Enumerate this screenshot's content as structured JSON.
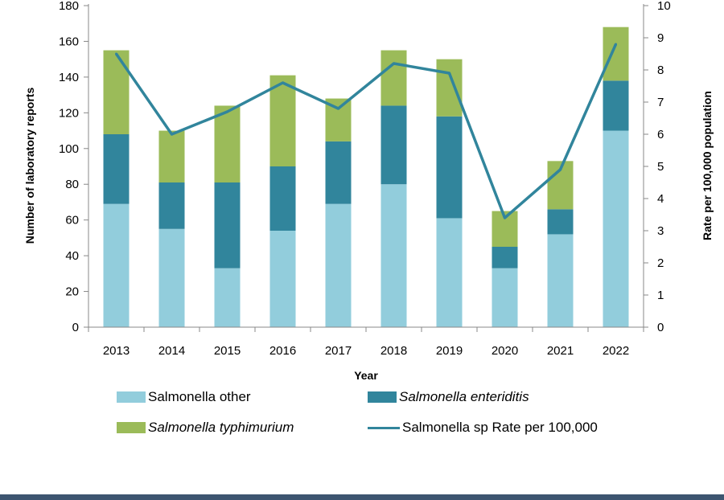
{
  "chart_data": {
    "type": "bar",
    "stacked": true,
    "categories": [
      "2013",
      "2014",
      "2015",
      "2016",
      "2017",
      "2018",
      "2019",
      "2020",
      "2021",
      "2022"
    ],
    "series": [
      {
        "name": "Salmonella other",
        "name_italic_part": "",
        "kind": "bar",
        "color": "#92cddc",
        "values": [
          69,
          55,
          33,
          54,
          69,
          80,
          61,
          33,
          52,
          110
        ]
      },
      {
        "name_prefix": "",
        "name": "Salmonella enteriditis",
        "name_italic_part": "Salmonella enteriditis",
        "kind": "bar",
        "color": "#31859c",
        "values": [
          39,
          26,
          48,
          36,
          35,
          44,
          57,
          12,
          14,
          28
        ]
      },
      {
        "name": "Salmonella typhimurium",
        "name_italic_part": "Salmonella typhimurium",
        "kind": "bar",
        "color": "#9bbb59",
        "values": [
          47,
          29,
          43,
          51,
          24,
          31,
          32,
          20,
          27,
          30
        ]
      },
      {
        "name": "Salmonella sp Rate per 100,000",
        "kind": "line",
        "axis": "right",
        "color": "#31859c",
        "values": [
          8.5,
          6.0,
          6.7,
          7.6,
          6.8,
          8.2,
          7.9,
          3.4,
          4.9,
          8.8
        ]
      }
    ],
    "xlabel": "Year",
    "ylabel": "Number of laboratory reports",
    "y2label": "Rate per 100,000 population",
    "ylim": [
      0,
      180
    ],
    "y_ticks": [
      "0",
      "20",
      "40",
      "60",
      "80",
      "100",
      "120",
      "140",
      "160",
      "180"
    ],
    "y2lim": [
      0,
      10
    ],
    "y2_ticks": [
      "0",
      "1",
      "2",
      "3",
      "4",
      "5",
      "6",
      "7",
      "8",
      "9",
      "10"
    ],
    "grid": false,
    "legend_position": "bottom"
  },
  "legend": {
    "other_label": "Salmonella other",
    "enteriditis_label": "Salmonella enteriditis",
    "typhimurium_label": "Salmonella typhimurium",
    "rate_label": "Salmonella sp Rate per 100,000"
  },
  "colors": {
    "other": "#92cddc",
    "enteriditis": "#31859c",
    "typhimurium": "#9bbb59",
    "rate_line": "#31859c",
    "footer_bar": "#3d5570"
  }
}
